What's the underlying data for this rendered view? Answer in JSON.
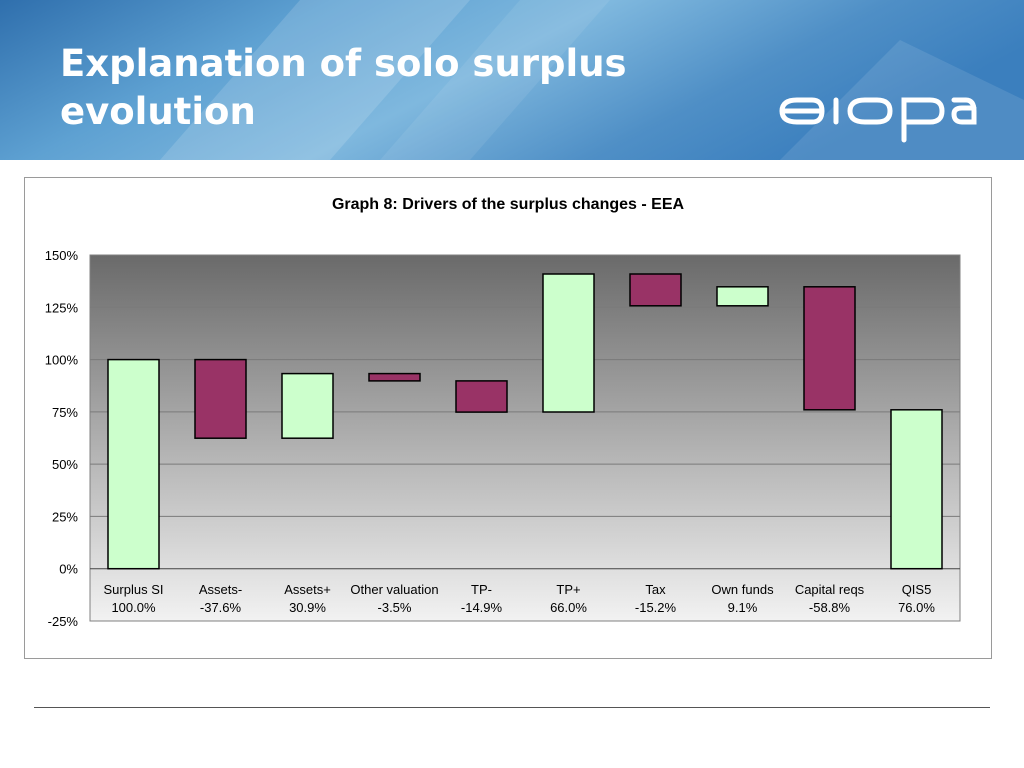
{
  "slide": {
    "title": "Explanation of solo surplus evolution",
    "logo_text": "eiopa"
  },
  "colors": {
    "increase": "#ccffcc",
    "decrease": "#993366",
    "plot_gradient_top": "#6a6a6a",
    "plot_gradient_bottom": "#f2f2f2",
    "banner": "#3f86bf"
  },
  "chart_data": {
    "type": "bar",
    "subtype": "waterfall",
    "title": "Graph 8: Drivers of the surplus changes - EEA",
    "xlabel": "",
    "ylabel": "",
    "ylim": [
      -25,
      150
    ],
    "yticks": [
      "-25%",
      "0%",
      "25%",
      "50%",
      "75%",
      "100%",
      "125%",
      "150%"
    ],
    "grid": true,
    "legend": "none",
    "categories": [
      "Surplus SI",
      "Assets-",
      "Assets+",
      "Other valuation",
      "TP-",
      "TP+",
      "Tax",
      "Own funds",
      "Capital reqs",
      "QIS5"
    ],
    "value_labels": [
      "100.0%",
      "-37.6%",
      "30.9%",
      "-3.5%",
      "-14.9%",
      "66.0%",
      "-15.2%",
      "9.1%",
      "-58.8%",
      "76.0%"
    ],
    "values": [
      100.0,
      -37.6,
      30.9,
      -3.5,
      -14.9,
      66.0,
      -15.2,
      9.1,
      -58.8,
      76.0
    ],
    "bar_low": [
      0,
      62.4,
      62.4,
      89.8,
      74.9,
      74.9,
      125.7,
      125.7,
      76.0,
      0
    ],
    "bar_high": [
      100,
      100,
      93.3,
      93.3,
      89.8,
      140.9,
      140.9,
      134.8,
      134.8,
      76.0
    ],
    "bar_type": [
      "total",
      "decrease",
      "increase",
      "decrease",
      "decrease",
      "increase",
      "decrease",
      "increase",
      "decrease",
      "total"
    ]
  }
}
